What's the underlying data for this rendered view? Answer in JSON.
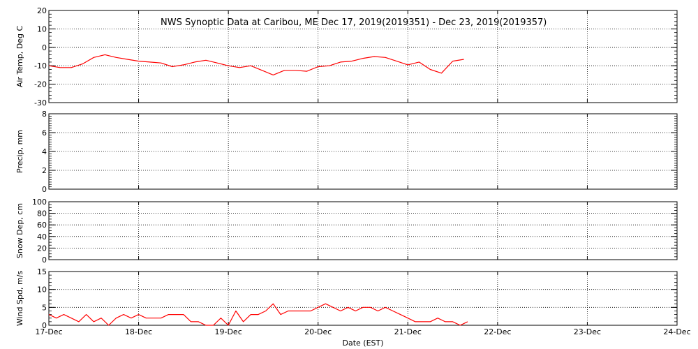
{
  "chart_data": [
    {
      "type": "line",
      "title": "NWS Synoptic Data at Caribou, ME    Dec 17, 2019(2019351) - Dec 23, 2019(2019357)",
      "xlabel": "Date (EST)",
      "ylabel": "Air Temp, Deg C",
      "xlim": [
        "2019-12-17",
        "2019-12-24"
      ],
      "ylim": [
        -30,
        20
      ],
      "yticks": [
        20,
        10,
        0,
        -10,
        -20,
        -30
      ],
      "grid": true,
      "series_color": "#ff0000",
      "x": [
        "2019-12-17 00:00",
        "2019-12-17 03:00",
        "2019-12-17 06:00",
        "2019-12-17 09:00",
        "2019-12-17 12:00",
        "2019-12-17 15:00",
        "2019-12-17 18:00",
        "2019-12-17 21:00",
        "2019-12-18 00:00",
        "2019-12-18 03:00",
        "2019-12-18 06:00",
        "2019-12-18 09:00",
        "2019-12-18 12:00",
        "2019-12-18 15:00",
        "2019-12-18 18:00",
        "2019-12-18 21:00",
        "2019-12-19 00:00",
        "2019-12-19 03:00",
        "2019-12-19 06:00",
        "2019-12-19 09:00",
        "2019-12-19 12:00",
        "2019-12-19 15:00",
        "2019-12-19 18:00",
        "2019-12-19 21:00",
        "2019-12-20 00:00",
        "2019-12-20 03:00",
        "2019-12-20 06:00",
        "2019-12-20 09:00",
        "2019-12-20 12:00",
        "2019-12-20 15:00",
        "2019-12-20 18:00",
        "2019-12-20 21:00",
        "2019-12-21 00:00",
        "2019-12-21 03:00",
        "2019-12-21 06:00",
        "2019-12-21 09:00",
        "2019-12-21 12:00",
        "2019-12-21 15:00"
      ],
      "y": [
        -10,
        -11,
        -11,
        -9,
        -5.5,
        -4,
        -5.5,
        -6.5,
        -7.5,
        -8,
        -8.5,
        -10.5,
        -9.5,
        -8,
        -7,
        -8.5,
        -10,
        -11,
        -10,
        -12.5,
        -15,
        -12.5,
        -12.5,
        -13,
        -10.5,
        -10,
        -8,
        -7.5,
        -6,
        -5,
        -5.5,
        -7.5,
        -9.5,
        -8,
        -12,
        -14,
        -7.5,
        -6.5
      ]
    },
    {
      "type": "line",
      "ylabel": "Precip, mm",
      "xlim": [
        "2019-12-17",
        "2019-12-24"
      ],
      "ylim": [
        0,
        8
      ],
      "yticks": [
        8,
        6,
        4,
        2,
        0
      ],
      "grid": true,
      "x": [],
      "y": []
    },
    {
      "type": "line",
      "ylabel": "Snow Dep, cm",
      "xlim": [
        "2019-12-17",
        "2019-12-24"
      ],
      "ylim": [
        0,
        100
      ],
      "yticks": [
        100,
        80,
        60,
        40,
        20,
        0
      ],
      "grid": true,
      "x": [],
      "y": []
    },
    {
      "type": "line",
      "ylabel": "Wind Spd, m/s",
      "xlabel": "Date (EST)",
      "xlim": [
        "2019-12-17",
        "2019-12-24"
      ],
      "ylim": [
        0,
        15
      ],
      "yticks": [
        15,
        10,
        5,
        0
      ],
      "grid": true,
      "series_color": "#ff0000",
      "xticklabels": [
        "17-Dec",
        "18-Dec",
        "19-Dec",
        "20-Dec",
        "21-Dec",
        "22-Dec",
        "23-Dec",
        "24-Dec"
      ],
      "x": [
        "2019-12-17 00:00",
        "2019-12-17 02:00",
        "2019-12-17 04:00",
        "2019-12-17 06:00",
        "2019-12-17 08:00",
        "2019-12-17 10:00",
        "2019-12-17 12:00",
        "2019-12-17 14:00",
        "2019-12-17 16:00",
        "2019-12-17 18:00",
        "2019-12-17 20:00",
        "2019-12-17 22:00",
        "2019-12-18 00:00",
        "2019-12-18 02:00",
        "2019-12-18 04:00",
        "2019-12-18 06:00",
        "2019-12-18 08:00",
        "2019-12-18 10:00",
        "2019-12-18 12:00",
        "2019-12-18 14:00",
        "2019-12-18 16:00",
        "2019-12-18 18:00",
        "2019-12-18 20:00",
        "2019-12-18 22:00",
        "2019-12-19 00:00",
        "2019-12-19 02:00",
        "2019-12-19 04:00",
        "2019-12-19 06:00",
        "2019-12-19 08:00",
        "2019-12-19 10:00",
        "2019-12-19 12:00",
        "2019-12-19 14:00",
        "2019-12-19 16:00",
        "2019-12-19 18:00",
        "2019-12-19 20:00",
        "2019-12-19 22:00",
        "2019-12-20 00:00",
        "2019-12-20 02:00",
        "2019-12-20 04:00",
        "2019-12-20 06:00",
        "2019-12-20 08:00",
        "2019-12-20 10:00",
        "2019-12-20 12:00",
        "2019-12-20 14:00",
        "2019-12-20 16:00",
        "2019-12-20 18:00",
        "2019-12-20 20:00",
        "2019-12-20 22:00",
        "2019-12-21 00:00",
        "2019-12-21 02:00",
        "2019-12-21 04:00",
        "2019-12-21 06:00",
        "2019-12-21 08:00",
        "2019-12-21 10:00",
        "2019-12-21 12:00",
        "2019-12-21 14:00",
        "2019-12-21 16:00"
      ],
      "y": [
        3,
        2,
        3,
        2,
        1,
        3,
        1,
        2,
        0,
        2,
        3,
        2,
        3,
        2,
        2,
        2,
        3,
        3,
        3,
        1,
        1,
        0,
        0,
        2,
        0,
        4,
        1,
        3,
        3,
        4,
        6,
        3,
        4,
        4,
        4,
        4,
        5,
        6,
        5,
        4,
        5,
        4,
        5,
        5,
        4,
        5,
        4,
        3,
        2,
        1,
        1,
        1,
        2,
        1,
        1,
        0,
        1
      ]
    }
  ]
}
